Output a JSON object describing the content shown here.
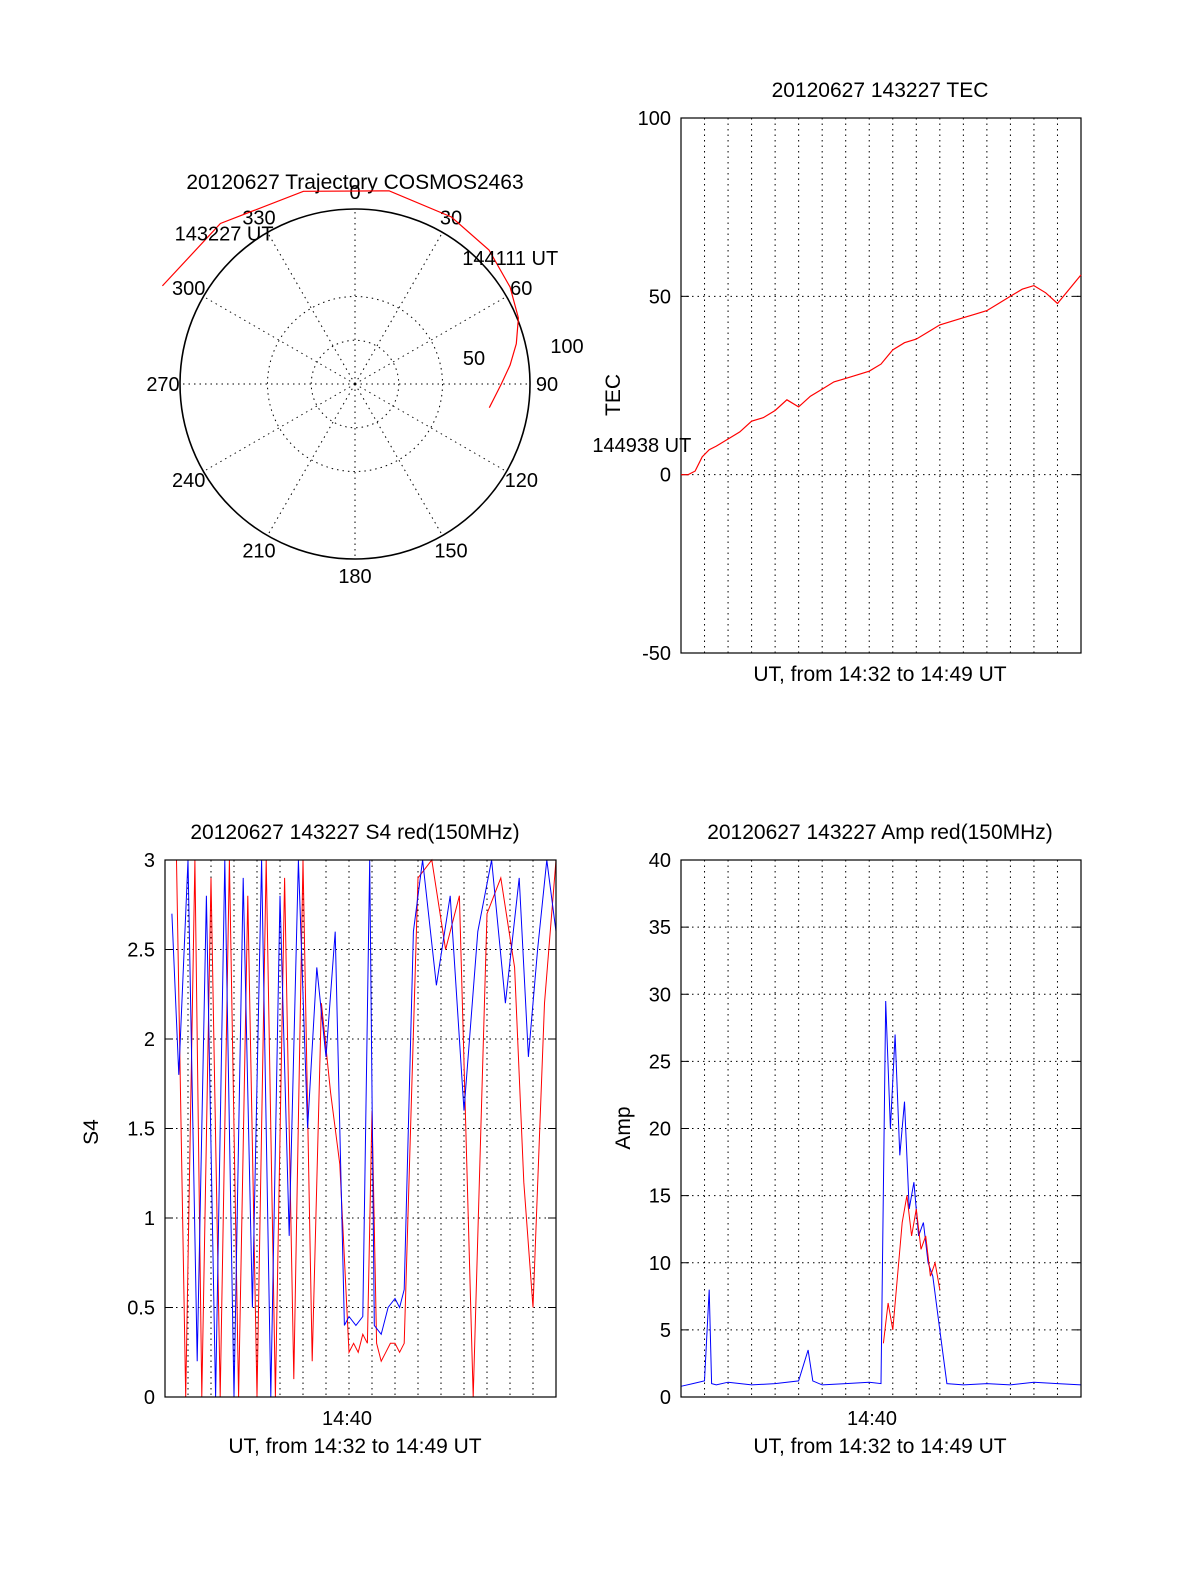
{
  "chart_data": [
    {
      "type": "polar",
      "title": "20120627 Trajectory COSMOS2463",
      "angle_labels": [
        "0",
        "30",
        "60",
        "90",
        "120",
        "150",
        "180",
        "210",
        "240",
        "270",
        "300",
        "330"
      ],
      "radial_labels": [
        "50",
        "100"
      ],
      "grid": true,
      "colors": {
        "track": "#ff0000"
      },
      "series": [
        {
          "azimuth": [
            297,
            320,
            345,
            10,
            30,
            45,
            58,
            68,
            76,
            83,
            90,
            96,
            100
          ],
          "elevation_offset": [
            65,
            63,
            60,
            59,
            58,
            57,
            55,
            53,
            50,
            47,
            44,
            42,
            41
          ]
        }
      ],
      "annotations": [
        {
          "text": "143227 UT",
          "azimuth": 320,
          "offset": 72
        },
        {
          "text": "144111 UT",
          "azimuth": 48,
          "offset": 70
        },
        {
          "text": "144938 UT",
          "azimuth": 100,
          "offset": 98
        }
      ]
    },
    {
      "type": "line",
      "title": "20120627 143227 TEC",
      "xlabel": "UT, from 14:32 to 14:49 UT",
      "ylabel": "TEC",
      "xlim": [
        0,
        17
      ],
      "ylim": [
        -50,
        100
      ],
      "yticks": [
        "100",
        "50",
        "0",
        "-50"
      ],
      "grid": true,
      "series": [
        {
          "color": "#ff0000",
          "x": [
            0,
            0.3,
            0.6,
            0.9,
            1.2,
            1.5,
            2.0,
            2.5,
            3.0,
            3.5,
            4.0,
            4.5,
            5.0,
            5.5,
            6.0,
            6.5,
            7.0,
            7.5,
            8.0,
            8.5,
            9.0,
            9.5,
            10.0,
            10.5,
            11.0,
            11.5,
            12.0,
            12.5,
            13.0,
            13.5,
            14.0,
            14.5,
            15.0,
            15.5,
            16.0,
            16.5,
            17.0
          ],
          "y": [
            0,
            0,
            1,
            5,
            7,
            8,
            10,
            12,
            15,
            16,
            18,
            21,
            19,
            22,
            24,
            26,
            27,
            28,
            29,
            31,
            35,
            37,
            38,
            40,
            42,
            43,
            44,
            45,
            46,
            48,
            50,
            52,
            53,
            51,
            48,
            52,
            56
          ]
        }
      ]
    },
    {
      "type": "line",
      "title": "20120627 143227 S4 red(150MHz)",
      "xlabel": "UT, from 14:32 to 14:49 UT",
      "ylabel": "S4",
      "xlim": [
        0,
        17
      ],
      "ylim": [
        0,
        3
      ],
      "xticks": [
        "14:40"
      ],
      "yticks": [
        "3",
        "2.5",
        "2",
        "1.5",
        "1",
        "0.5",
        "0"
      ],
      "grid": true,
      "series": [
        {
          "color": "#ff0000",
          "x": [
            0.5,
            0.9,
            1.3,
            1.6,
            2.0,
            2.4,
            2.8,
            3.2,
            3.6,
            4.0,
            4.4,
            4.8,
            5.2,
            5.6,
            6.0,
            6.4,
            6.8,
            7.2,
            7.6,
            8.0,
            8.2,
            8.4,
            8.6,
            8.8,
            9.0,
            9.2,
            9.4,
            9.6,
            9.8,
            10.0,
            10.2,
            10.4,
            11.0,
            11.6,
            12.2,
            12.8,
            13.4,
            14.0,
            14.6,
            15.2,
            15.6,
            16.0,
            16.5,
            17.0
          ],
          "y": [
            3.0,
            0.0,
            3.0,
            0.0,
            2.9,
            0.0,
            3.0,
            0.0,
            2.8,
            0.0,
            3.0,
            0.0,
            2.9,
            0.1,
            3.0,
            0.2,
            2.2,
            1.7,
            1.3,
            0.25,
            0.3,
            0.25,
            0.35,
            0.3,
            1.6,
            0.3,
            0.2,
            0.25,
            0.3,
            0.3,
            0.25,
            0.3,
            2.9,
            3.0,
            2.5,
            2.8,
            0.0,
            2.7,
            2.9,
            2.4,
            1.2,
            0.5,
            2.2,
            3.0
          ]
        },
        {
          "color": "#0000ff",
          "x": [
            0.3,
            0.6,
            1.0,
            1.4,
            1.8,
            2.2,
            2.6,
            3.0,
            3.4,
            3.8,
            4.2,
            4.6,
            5.0,
            5.4,
            5.8,
            6.2,
            6.6,
            7.0,
            7.4,
            7.8,
            8.0,
            8.3,
            8.6,
            8.9,
            9.1,
            9.4,
            9.7,
            10.0,
            10.2,
            10.4,
            10.8,
            11.2,
            11.8,
            12.4,
            13.0,
            13.6,
            14.2,
            14.8,
            15.4,
            15.8,
            16.2,
            16.6,
            17.0
          ],
          "y": [
            2.7,
            1.8,
            3.0,
            0.2,
            2.8,
            0.0,
            3.0,
            0.0,
            2.9,
            0.5,
            3.0,
            0.0,
            2.8,
            0.9,
            3.0,
            1.5,
            2.4,
            1.9,
            2.6,
            0.4,
            0.45,
            0.4,
            0.45,
            3.0,
            0.4,
            0.35,
            0.5,
            0.55,
            0.5,
            0.6,
            2.6,
            3.0,
            2.3,
            2.8,
            1.6,
            2.6,
            3.0,
            2.2,
            2.9,
            1.9,
            2.5,
            3.0,
            2.6
          ]
        }
      ]
    },
    {
      "type": "line",
      "title": "20120627 143227 Amp red(150MHz)",
      "xlabel": "UT, from 14:32 to 14:49 UT",
      "ylabel": "Amp",
      "xlim": [
        0,
        17
      ],
      "ylim": [
        0,
        40
      ],
      "xticks": [
        "14:40"
      ],
      "yticks": [
        "40",
        "35",
        "30",
        "25",
        "20",
        "15",
        "10",
        "5",
        "0"
      ],
      "grid": true,
      "series": [
        {
          "color": "#ff0000",
          "x": [
            8.6,
            8.8,
            9.0,
            9.2,
            9.4,
            9.6,
            9.8,
            10.0,
            10.2,
            10.4,
            10.6,
            10.8,
            11.0
          ],
          "y": [
            4,
            7,
            5,
            9,
            13,
            15,
            12,
            14,
            11,
            12,
            9,
            10,
            8
          ]
        },
        {
          "color": "#0000ff",
          "x": [
            0,
            0.5,
            1.0,
            1.2,
            1.3,
            1.5,
            2.0,
            3.0,
            4.0,
            5.0,
            5.4,
            5.6,
            6.0,
            7.0,
            8.0,
            8.5,
            8.7,
            8.9,
            9.1,
            9.3,
            9.5,
            9.7,
            9.9,
            10.1,
            10.3,
            10.5,
            10.7,
            11.0,
            11.3,
            12.0,
            13.0,
            14.0,
            15.0,
            16.0,
            17.0
          ],
          "y": [
            0.8,
            1.0,
            1.2,
            8.0,
            1.0,
            0.9,
            1.1,
            0.9,
            1.0,
            1.2,
            3.5,
            1.2,
            0.9,
            1.0,
            1.1,
            1.0,
            29.5,
            20,
            27,
            18,
            22,
            14,
            16,
            12,
            13,
            10,
            9,
            5,
            1.0,
            0.9,
            1.0,
            0.9,
            1.1,
            1.0,
            0.9
          ]
        }
      ]
    }
  ]
}
